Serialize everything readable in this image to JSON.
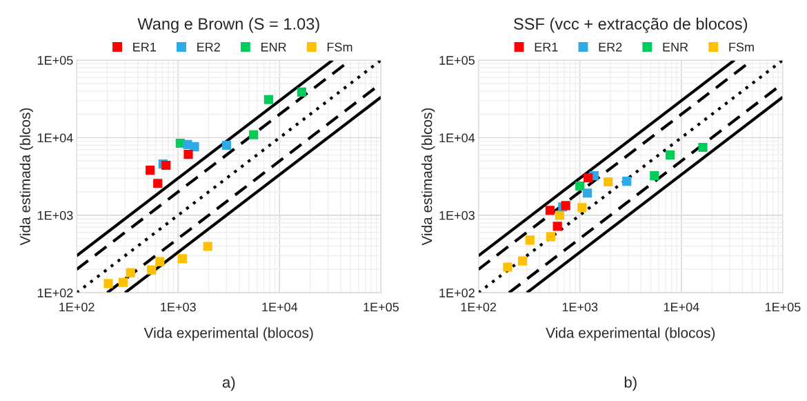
{
  "chart_data": [
    {
      "type": "scatter",
      "title": "Wang e Brown (S = 1.03)",
      "xlabel": "Vida experimental (blocos)",
      "ylabel": "Vida estimada (blcos)",
      "log": "xy",
      "grid": true,
      "legend": "top",
      "marker": "square",
      "xlim": [
        100,
        100000
      ],
      "ylim": [
        100,
        100000
      ],
      "xticks": [
        {
          "value": 100,
          "label": "1E+02"
        },
        {
          "value": 1000,
          "label": "1E+03"
        },
        {
          "value": 10000,
          "label": "1E+04"
        },
        {
          "value": 100000,
          "label": "1E+05"
        }
      ],
      "yticks": [
        {
          "value": 100,
          "label": "1E+02"
        },
        {
          "value": 1000,
          "label": "1E+03"
        },
        {
          "value": 10000,
          "label": "1E+04"
        },
        {
          "value": 100000,
          "label": "1E+05"
        }
      ],
      "annotations": [
        "a)"
      ],
      "series": [
        {
          "name": "ER1",
          "color": "#ff0000",
          "x": [
            1260,
            760,
            530,
            630
          ],
          "values": [
            6100,
            4400,
            3800,
            2570
          ]
        },
        {
          "name": "ER2",
          "color": "#2eaae6",
          "x": [
            710,
            1240,
            1450,
            3000
          ],
          "values": [
            4570,
            8150,
            7650,
            7980
          ]
        },
        {
          "name": "ENR",
          "color": "#00cc5a",
          "x": [
            1050,
            7800,
            5550,
            16500
          ],
          "values": [
            8480,
            31000,
            10900,
            38800
          ]
        },
        {
          "name": "FSm",
          "color": "#ffc000",
          "x": [
            205,
            287,
            340,
            548,
            661,
            1100,
            1960
          ],
          "values": [
            131,
            136,
            181,
            197,
            252,
            274,
            396
          ]
        },
        {
          "type": "line",
          "color": "#000000",
          "line_style": "solid",
          "marker": "none",
          "x": [
            100,
            33333
          ],
          "values": [
            300,
            100000
          ]
        },
        {
          "type": "line",
          "color": "#000000",
          "line_style": "dashed",
          "marker": "none",
          "x": [
            100,
            50000
          ],
          "values": [
            200,
            100000
          ]
        },
        {
          "type": "line",
          "color": "#000000",
          "line_style": "dotted",
          "marker": "none",
          "x": [
            100,
            100000
          ],
          "values": [
            100,
            100000
          ]
        },
        {
          "type": "line",
          "color": "#000000",
          "line_style": "dashed",
          "marker": "none",
          "x": [
            200,
            100000
          ],
          "values": [
            100,
            50000
          ]
        },
        {
          "type": "line",
          "color": "#000000",
          "line_style": "solid",
          "marker": "none",
          "x": [
            300,
            100000
          ],
          "values": [
            100,
            33333
          ]
        }
      ]
    },
    {
      "type": "scatter",
      "title": "SSF (vcc + extracção de blocos)",
      "xlabel": "Vida experimental (blocos)",
      "ylabel": "Vida estimada (blcos)",
      "log": "xy",
      "grid": true,
      "legend": "top",
      "marker": "square",
      "xlim": [
        100,
        100000
      ],
      "ylim": [
        100,
        100000
      ],
      "xticks": [
        {
          "value": 100,
          "label": "1E+02"
        },
        {
          "value": 1000,
          "label": "1E+03"
        },
        {
          "value": 10000,
          "label": "1E+04"
        },
        {
          "value": 100000,
          "label": "1E+05"
        }
      ],
      "yticks": [
        {
          "value": 100,
          "label": "1E+02"
        },
        {
          "value": 1000,
          "label": "1E+03"
        },
        {
          "value": 10000,
          "label": "1E+04"
        },
        {
          "value": 100000,
          "label": "1E+05"
        }
      ],
      "annotations": [
        "b)"
      ],
      "series": [
        {
          "name": "ER1",
          "color": "#ff0000",
          "x": [
            1205,
            725,
            508,
            601
          ],
          "values": [
            3030,
            1330,
            1155,
            720
          ]
        },
        {
          "name": "ER2",
          "color": "#2eaae6",
          "x": [
            1380,
            1185,
            677,
            2900
          ],
          "values": [
            3230,
            1930,
            1280,
            2740
          ]
        },
        {
          "name": "ENR",
          "color": "#00cc5a",
          "x": [
            1000,
            7760,
            5430,
            16300
          ],
          "values": [
            2370,
            5980,
            3230,
            7500
          ]
        },
        {
          "name": "FSm",
          "color": "#ffc000",
          "x": [
            194,
            272,
            322,
            516,
            632,
            1050,
            1900
          ],
          "values": [
            214,
            257,
            478,
            529,
            1000,
            1250,
            2690
          ]
        },
        {
          "type": "line",
          "color": "#000000",
          "line_style": "solid",
          "marker": "none",
          "x": [
            100,
            33333
          ],
          "values": [
            300,
            100000
          ]
        },
        {
          "type": "line",
          "color": "#000000",
          "line_style": "dashed",
          "marker": "none",
          "x": [
            100,
            50000
          ],
          "values": [
            200,
            100000
          ]
        },
        {
          "type": "line",
          "color": "#000000",
          "line_style": "dotted",
          "marker": "none",
          "x": [
            100,
            100000
          ],
          "values": [
            100,
            100000
          ]
        },
        {
          "type": "line",
          "color": "#000000",
          "line_style": "dashed",
          "marker": "none",
          "x": [
            200,
            100000
          ],
          "values": [
            100,
            50000
          ]
        },
        {
          "type": "line",
          "color": "#000000",
          "line_style": "solid",
          "marker": "none",
          "x": [
            300,
            100000
          ],
          "values": [
            100,
            33333
          ]
        }
      ]
    }
  ]
}
